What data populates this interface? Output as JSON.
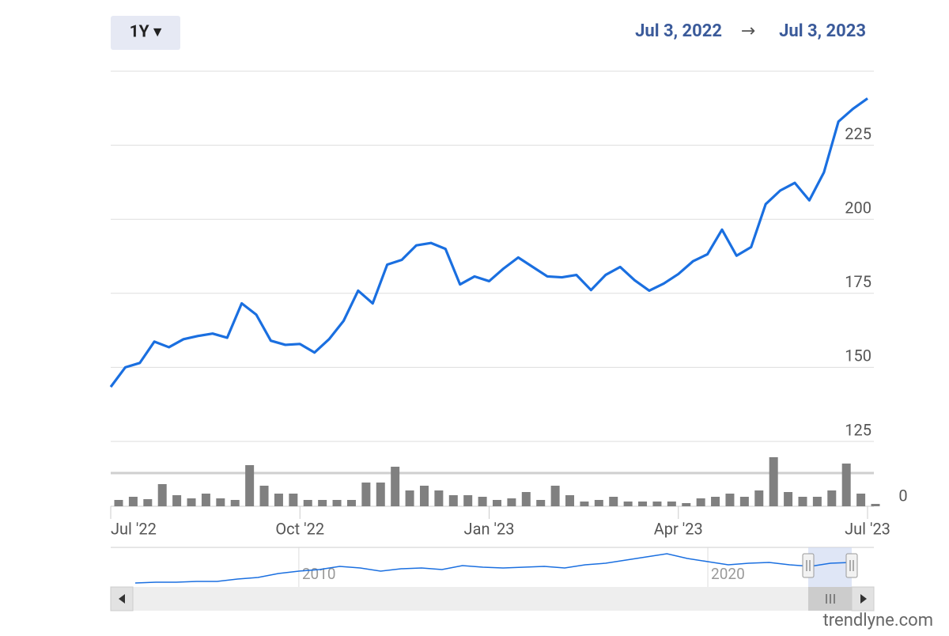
{
  "controls": {
    "range_button": "1Y ▾",
    "date_from": "Jul 3, 2022",
    "arrow": "→",
    "date_to": "Jul 3, 2023"
  },
  "chart_data": [
    {
      "type": "line",
      "categories": [
        "Jul '22",
        null,
        null,
        null,
        null,
        null,
        null,
        null,
        null,
        null,
        null,
        null,
        null,
        "Oct '22",
        null,
        null,
        null,
        null,
        null,
        null,
        null,
        null,
        null,
        null,
        null,
        null,
        "Jan '23",
        null,
        null,
        null,
        null,
        null,
        null,
        null,
        null,
        null,
        null,
        null,
        null,
        "Apr '23",
        null,
        null,
        null,
        null,
        null,
        null,
        null,
        null,
        null,
        null,
        null,
        null,
        "Jul '23"
      ],
      "series": [
        {
          "type": "line",
          "color": "#1a6fe0",
          "values": [
            143.4,
            150,
            151.5,
            158.7,
            156.8,
            159.5,
            160.6,
            161.4,
            160,
            171.6,
            167.8,
            159,
            157.6,
            157.9,
            155,
            159.5,
            165.7,
            175.9,
            171.6,
            184.7,
            186.3,
            191.2,
            192,
            190,
            178,
            180.7,
            179.1,
            183.4,
            187.1,
            183.9,
            180.7,
            180.4,
            181.2,
            176.1,
            181.2,
            183.9,
            179.4,
            175.9,
            178.3,
            181.5,
            185.8,
            188.2,
            196.5,
            187.7,
            190.6,
            205.1,
            209.7,
            212.3,
            206.4,
            215.8,
            233,
            237.3,
            240.8
          ]
        },
        {
          "type": "bar",
          "axis": "y2",
          "color": "#808080",
          "values": [
            8,
            12,
            9,
            28,
            14,
            10,
            16,
            10,
            8,
            52,
            26,
            16,
            16,
            8,
            8,
            8,
            8,
            30,
            30,
            50,
            20,
            26,
            20,
            14,
            14,
            12,
            8,
            10,
            18,
            8,
            26,
            14,
            6,
            8,
            12,
            6,
            6,
            6,
            6,
            4,
            10,
            12,
            16,
            12,
            20,
            62,
            18,
            12,
            12,
            20,
            54,
            16,
            3
          ]
        }
      ],
      "ylim": [
        125,
        250
      ],
      "yticks": [
        125,
        150,
        175,
        200,
        225
      ],
      "y2lim": [
        0,
        80
      ],
      "y2ticks": [
        0
      ],
      "grid": true
    },
    {
      "type": "line",
      "x": [
        2006,
        2006.5,
        2007,
        2007.5,
        2008,
        2008.5,
        2009,
        2009.5,
        2010,
        2010.5,
        2011,
        2011.5,
        2012,
        2012.5,
        2013,
        2013.5,
        2014,
        2014.5,
        2015,
        2015.5,
        2016,
        2016.5,
        2017,
        2017.5,
        2018,
        2018.5,
        2019,
        2019.5,
        2020,
        2020.5,
        2021,
        2021.5,
        2022,
        2022.5,
        2023,
        2023.5
      ],
      "series": [
        {
          "color": "#1a6fe0",
          "values": [
            5,
            6,
            6,
            7,
            7,
            10,
            12,
            17,
            20,
            22,
            26,
            24,
            20,
            23,
            24,
            22,
            27,
            25,
            24,
            25,
            26,
            24,
            28,
            30,
            34,
            38,
            42,
            36,
            32,
            28,
            30,
            31,
            28,
            26,
            30,
            31
          ]
        }
      ],
      "xlim": [
        2005.4,
        2024.06
      ],
      "xticks": [
        2010,
        2020
      ],
      "ylim": [
        0,
        50
      ]
    }
  ],
  "watermark": "trendlyne.com"
}
